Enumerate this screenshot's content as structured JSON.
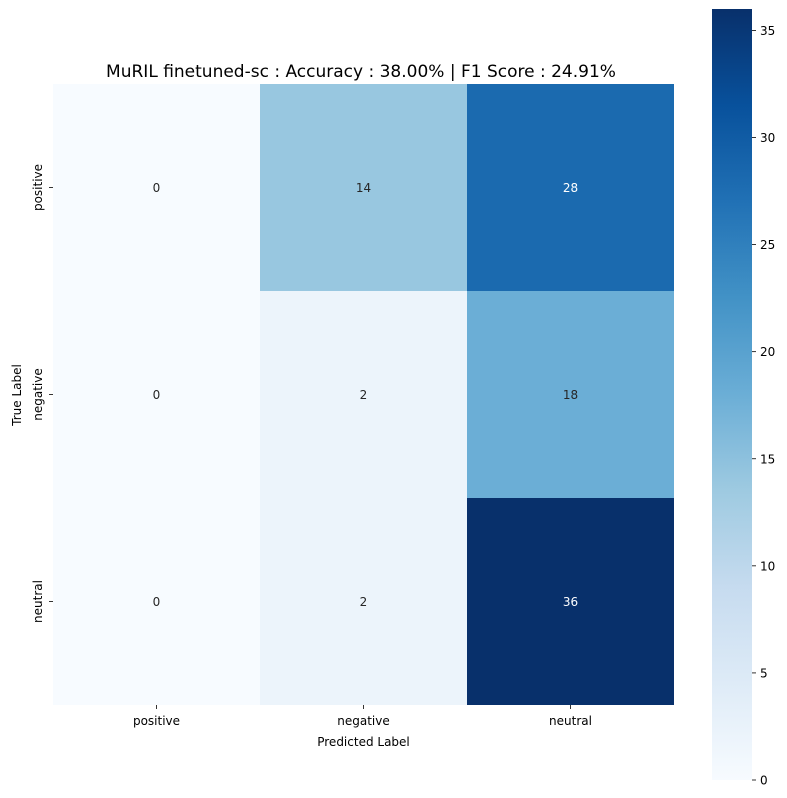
{
  "chart_data": {
    "type": "heatmap",
    "title": "MuRIL finetuned-sc : Accuracy : 38.00% | F1 Score : 24.91%",
    "xlabel": "Predicted Label",
    "ylabel": "True Label",
    "x_categories": [
      "positive",
      "negative",
      "neutral"
    ],
    "y_categories": [
      "positive",
      "negative",
      "neutral"
    ],
    "values": [
      [
        0,
        14,
        28
      ],
      [
        0,
        2,
        18
      ],
      [
        0,
        2,
        36
      ]
    ],
    "colormap": "Blues",
    "colorbar": {
      "min": 0,
      "max": 36,
      "ticks": [
        0,
        5,
        10,
        15,
        20,
        25,
        30,
        35
      ]
    }
  }
}
